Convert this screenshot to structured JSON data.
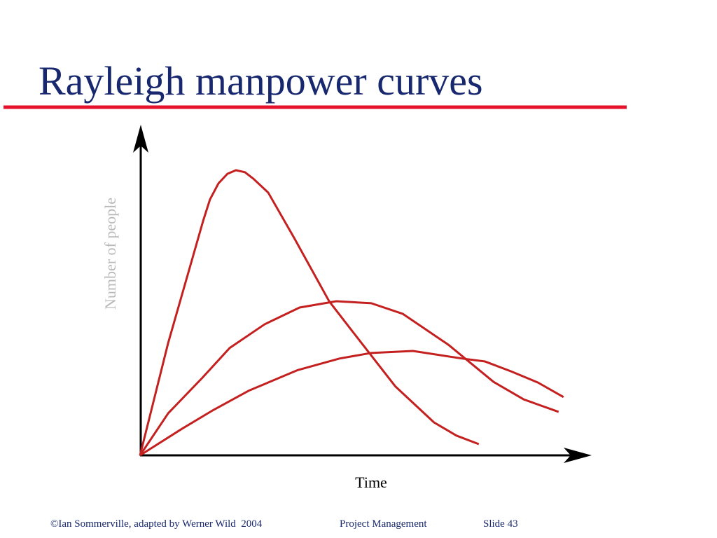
{
  "chart_data": {
    "type": "line",
    "title": "Rayleigh manpower curves",
    "x_label": "Time",
    "y_label": "Number of people",
    "xlim": [
      0,
      100
    ],
    "ylim": [
      0,
      100
    ],
    "series": [
      {
        "color": "#c42020",
        "x": [
          0,
          6.25,
          14.1,
          15.6,
          17.5,
          19.5,
          21.4,
          23.4,
          25.3,
          28.6,
          34.4,
          42.2,
          49.2,
          57.0,
          65.6,
          70.6,
          75.6
        ],
        "values": [
          0,
          34.0,
          71.3,
          77.7,
          82.6,
          85.5,
          86.6,
          86.0,
          84.0,
          79.8,
          66.0,
          46.8,
          34.5,
          20.9,
          10.0,
          6.0,
          3.4
        ]
      },
      {
        "color": "#c42020",
        "x": [
          0,
          6.3,
          13.8,
          20,
          27.8,
          35.6,
          43.8,
          51.6,
          58.6,
          68.8,
          78.9,
          85.6,
          93.4
        ],
        "values": [
          0,
          12.8,
          23.4,
          32.6,
          39.8,
          44.9,
          46.8,
          46.2,
          43.0,
          33.6,
          22.3,
          17.0,
          13.2
        ]
      },
      {
        "color": "#c42020",
        "x": [
          0,
          9.4,
          16.4,
          24.2,
          35.2,
          44.5,
          51.6,
          60.9,
          71.9,
          77.0,
          82.8,
          88.8,
          94.5
        ],
        "values": [
          0,
          8.1,
          13.8,
          19.6,
          25.9,
          29.4,
          31.1,
          31.7,
          29.4,
          28.5,
          25.5,
          22.1,
          17.7
        ]
      }
    ]
  },
  "footer": {
    "copyright": "©Ian Sommerville, adapted by Werner Wild  2004",
    "topic": "Project Management",
    "slide": "Slide 43"
  }
}
